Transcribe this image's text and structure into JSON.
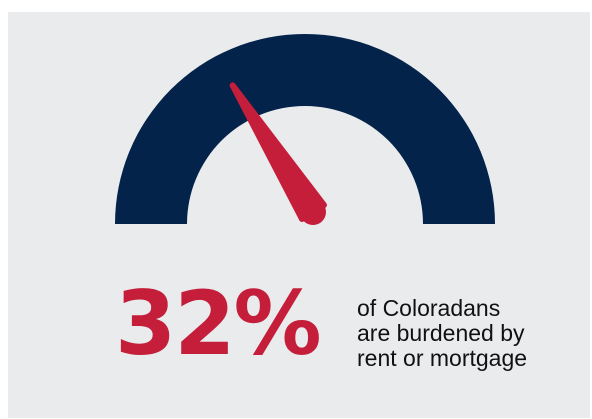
{
  "chart_data": {
    "type": "gauge",
    "value": 32,
    "unit": "%",
    "range": [
      0,
      100
    ],
    "value_label": "32%",
    "caption_lines": [
      "of Coloradans",
      "are burdened by",
      "rent or mortgage"
    ]
  },
  "colors": {
    "background": "#eaebed",
    "arc": "#03234b",
    "needle": "#c41e3a",
    "value_text": "#c41e3a",
    "caption_text": "#111111"
  }
}
